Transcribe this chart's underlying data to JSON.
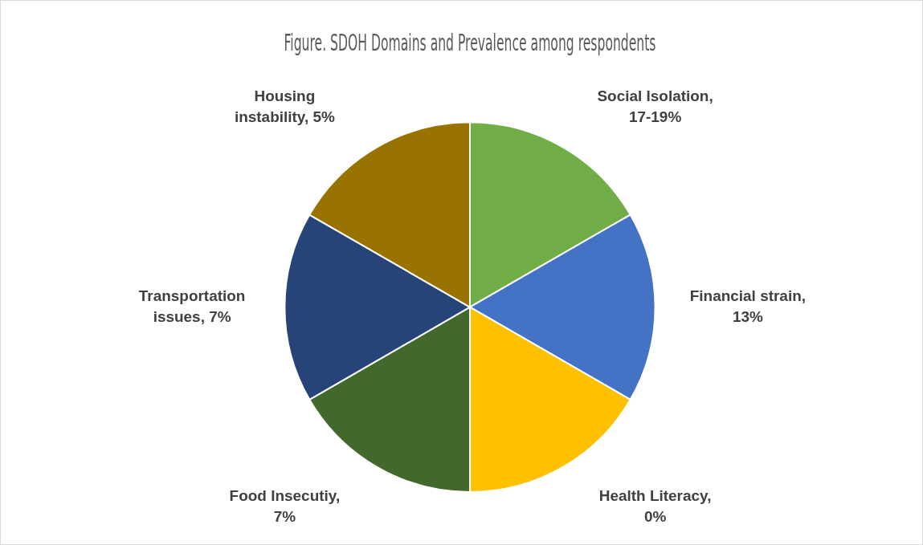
{
  "chart_data": {
    "type": "pie",
    "title": "Figure. SDOH Domains and Prevalence among respondents",
    "categories": [
      "Social Isolation, 17-19%",
      "Financial strain, 13%",
      "Health Literacy, 0%",
      "Food Insecutiy, 7%",
      "Transportation issues, 7%",
      "Housing instability, 5%"
    ],
    "values": [
      16.67,
      16.67,
      16.67,
      16.67,
      16.67,
      16.67
    ],
    "colors": [
      "#70ad47",
      "#4472c4",
      "#ffc000",
      "#43682b",
      "#264478",
      "#997300"
    ],
    "legend": false
  }
}
